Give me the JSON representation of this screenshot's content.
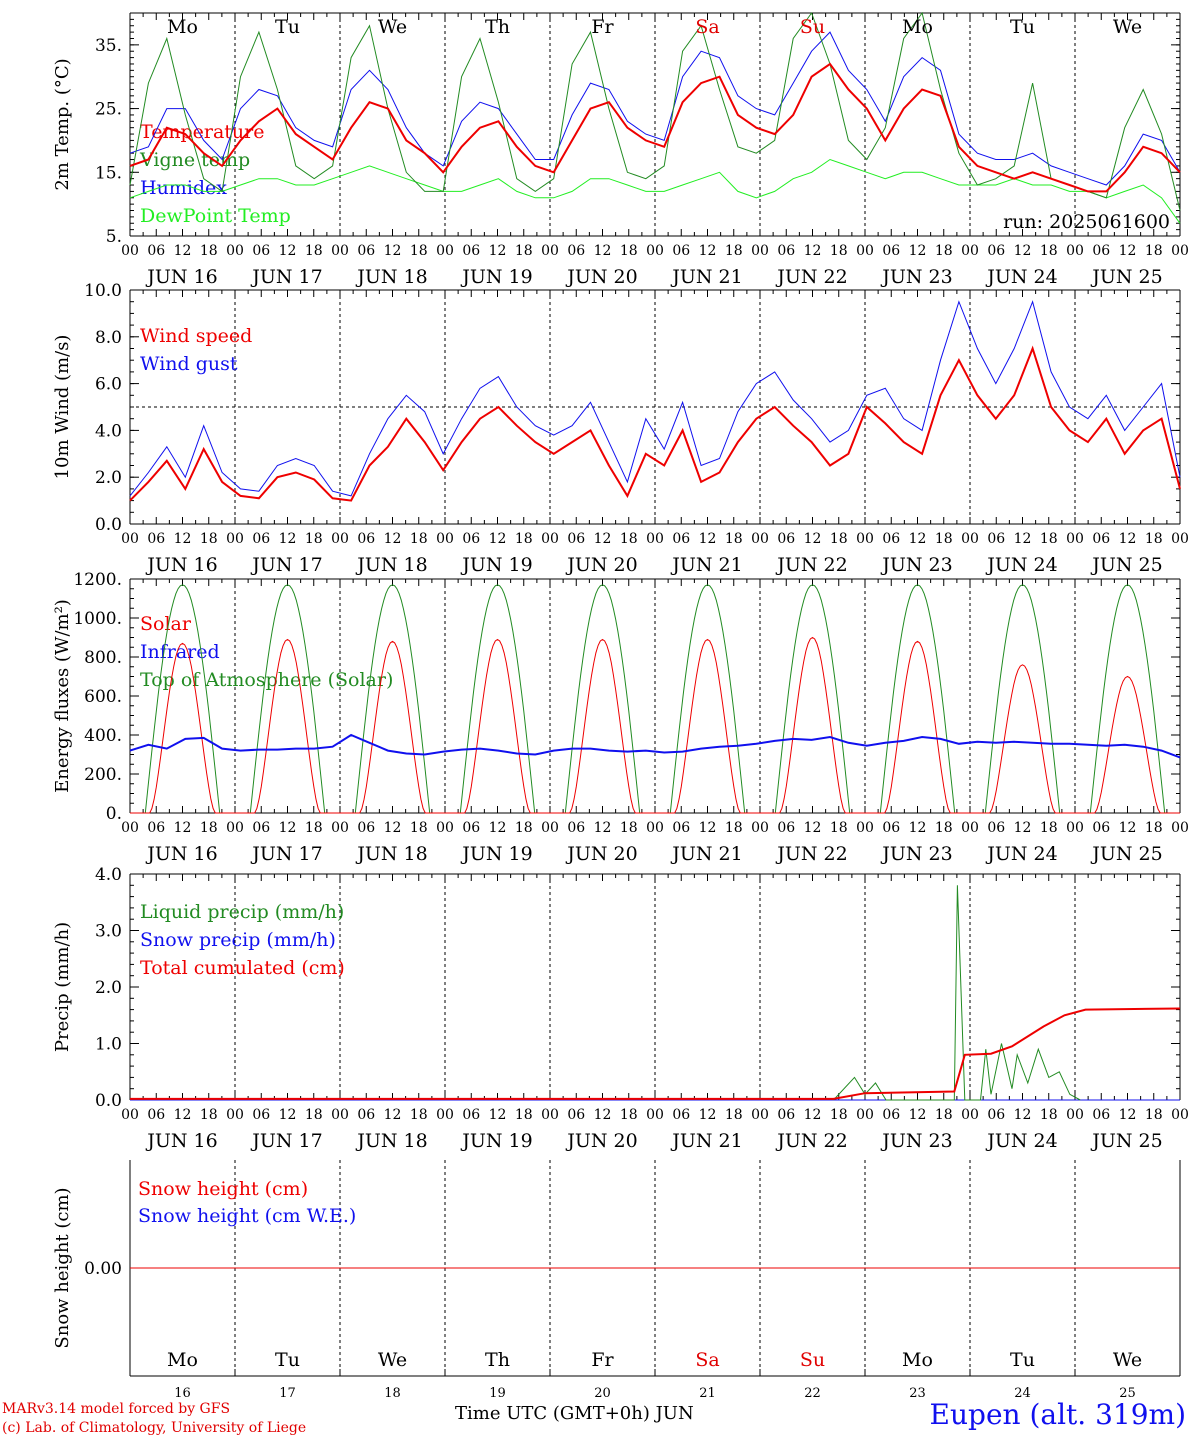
{
  "chart_data": [
    {
      "type": "line",
      "panel": "temperature",
      "ylabel": "2m Temp. (°C)",
      "ylim": [
        5,
        40
      ],
      "yticks": [
        "5.",
        "15.",
        "25.",
        "35."
      ],
      "annotation": "run: 2025061600",
      "day_names": [
        "Mo",
        "Tu",
        "We",
        "Th",
        "Fr",
        "Sa",
        "Su",
        "Mo",
        "Tu",
        "We"
      ],
      "day_name_colors": [
        "#000000",
        "#000000",
        "#000000",
        "#000000",
        "#000000",
        "#e00000",
        "#e00000",
        "#000000",
        "#000000",
        "#000000"
      ],
      "series": [
        {
          "name": "Temperature",
          "color": "#ee0000",
          "width": 2,
          "values": [
            16,
            17,
            22,
            21,
            18,
            16,
            20,
            23,
            25,
            21,
            19,
            17,
            22,
            26,
            25,
            20,
            18,
            15,
            19,
            22,
            23,
            19,
            16,
            15,
            20,
            25,
            26,
            22,
            20,
            19,
            26,
            29,
            30,
            24,
            22,
            21,
            24,
            30,
            32,
            28,
            25,
            20,
            25,
            28,
            27,
            19,
            16,
            15,
            14,
            15,
            14,
            13,
            12,
            12,
            15,
            19,
            18,
            15
          ]
        },
        {
          "name": "Vigne temp",
          "color": "#228b22",
          "width": 1,
          "values": [
            13,
            29,
            36,
            24,
            14,
            12,
            30,
            37,
            28,
            16,
            14,
            16,
            33,
            38,
            25,
            15,
            12,
            12,
            30,
            36,
            26,
            14,
            12,
            14,
            32,
            37,
            25,
            15,
            14,
            16,
            34,
            38,
            28,
            19,
            18,
            20,
            36,
            40,
            32,
            20,
            17,
            22,
            36,
            40,
            28,
            18,
            13,
            14,
            16,
            29,
            14,
            13,
            12,
            11,
            22,
            28,
            21,
            9
          ]
        },
        {
          "name": "Humidex",
          "color": "#1010ee",
          "width": 1,
          "values": [
            18,
            19,
            25,
            25,
            20,
            17,
            25,
            28,
            27,
            22,
            20,
            19,
            28,
            31,
            28,
            22,
            18,
            16,
            23,
            26,
            25,
            21,
            17,
            17,
            24,
            29,
            28,
            23,
            21,
            20,
            30,
            34,
            33,
            27,
            25,
            24,
            29,
            34,
            37,
            31,
            28,
            23,
            30,
            33,
            31,
            21,
            18,
            17,
            17,
            18,
            16,
            15,
            14,
            13,
            16,
            21,
            20,
            15
          ]
        },
        {
          "name": "DewPoint Temp",
          "color": "#22ee22",
          "width": 1,
          "values": [
            11,
            12,
            13,
            13,
            12,
            12,
            13,
            14,
            14,
            13,
            13,
            14,
            15,
            16,
            15,
            14,
            13,
            12,
            12,
            13,
            14,
            12,
            11,
            11,
            12,
            14,
            14,
            13,
            12,
            12,
            13,
            14,
            15,
            12,
            11,
            12,
            14,
            15,
            17,
            16,
            15,
            14,
            15,
            15,
            14,
            13,
            13,
            13,
            14,
            13,
            13,
            12,
            12,
            11,
            12,
            13,
            11,
            7
          ]
        }
      ]
    },
    {
      "type": "line",
      "panel": "wind",
      "ylabel": "10m Wind (m/s)",
      "ylim": [
        0,
        10
      ],
      "yticks": [
        "0.0",
        "2.0",
        "4.0",
        "6.0",
        "8.0",
        "10.0"
      ],
      "reference_line": 5.0,
      "series": [
        {
          "name": "Wind speed",
          "color": "#ee0000",
          "width": 2,
          "values": [
            1.0,
            1.8,
            2.7,
            1.5,
            3.2,
            1.8,
            1.2,
            1.1,
            2.0,
            2.2,
            1.9,
            1.1,
            1.0,
            2.5,
            3.3,
            4.5,
            3.5,
            2.3,
            3.5,
            4.5,
            5.0,
            4.2,
            3.5,
            3.0,
            3.5,
            4.0,
            2.5,
            1.2,
            3.0,
            2.5,
            4.0,
            1.8,
            2.2,
            3.5,
            4.5,
            5.0,
            4.2,
            3.5,
            2.5,
            3.0,
            5.0,
            4.3,
            3.5,
            3.0,
            5.5,
            7.0,
            5.5,
            4.5,
            5.5,
            7.5,
            5.0,
            4.0,
            3.5,
            4.5,
            3.0,
            4.0,
            4.5,
            1.5
          ]
        },
        {
          "name": "Wind gust",
          "color": "#1010ee",
          "width": 1,
          "values": [
            1.2,
            2.2,
            3.3,
            2.0,
            4.2,
            2.2,
            1.5,
            1.4,
            2.5,
            2.8,
            2.5,
            1.4,
            1.2,
            3.0,
            4.5,
            5.5,
            4.8,
            3.0,
            4.5,
            5.8,
            6.3,
            5.0,
            4.2,
            3.8,
            4.2,
            5.2,
            3.5,
            1.8,
            4.5,
            3.2,
            5.2,
            2.5,
            2.8,
            4.8,
            6.0,
            6.5,
            5.3,
            4.5,
            3.5,
            4.0,
            5.5,
            5.8,
            4.5,
            4.0,
            7.0,
            9.5,
            7.5,
            6.0,
            7.5,
            9.5,
            6.5,
            5.0,
            4.5,
            5.5,
            4.0,
            5.0,
            6.0,
            2.0
          ]
        }
      ]
    },
    {
      "type": "line",
      "panel": "energy",
      "ylabel": "Energy fluxes (W/m²)",
      "ylim": [
        0,
        1200
      ],
      "yticks": [
        "0.",
        "200.",
        "400.",
        "600.",
        "800.",
        "1000.",
        "1200."
      ],
      "series": [
        {
          "name": "Solar",
          "color": "#ee0000",
          "width": 1,
          "daily_peaks": [
            870,
            890,
            880,
            890,
            890,
            890,
            900,
            880,
            760,
            700
          ]
        },
        {
          "name": "Infrared",
          "color": "#1010ee",
          "width": 2,
          "values": [
            320,
            350,
            330,
            380,
            385,
            330,
            320,
            325,
            325,
            330,
            330,
            340,
            400,
            360,
            320,
            305,
            300,
            315,
            325,
            330,
            320,
            305,
            300,
            320,
            330,
            330,
            320,
            315,
            320,
            310,
            315,
            330,
            340,
            345,
            355,
            370,
            380,
            375,
            390,
            360,
            345,
            360,
            370,
            390,
            380,
            355,
            365,
            360,
            365,
            360,
            355,
            355,
            350,
            345,
            350,
            340,
            320,
            285
          ]
        },
        {
          "name": "Top of Atmosphere (Solar)",
          "color": "#228b22",
          "width": 1,
          "daily_peak": 1170
        }
      ]
    },
    {
      "type": "line",
      "panel": "precip",
      "ylabel": "Precip (mm/h)",
      "ylim": [
        0,
        4
      ],
      "yticks": [
        "0.0",
        "1.0",
        "2.0",
        "3.0",
        "4.0"
      ],
      "series": [
        {
          "name": "Liquid precip (mm/h)",
          "color": "#228b22",
          "width": 1,
          "points": [
            [
              6.7,
              0.0
            ],
            [
              6.9,
              0.4
            ],
            [
              7.0,
              0.1
            ],
            [
              7.1,
              0.3
            ],
            [
              7.2,
              0.0
            ],
            [
              7.85,
              0.0
            ],
            [
              7.88,
              3.8
            ],
            [
              7.95,
              0.0
            ],
            [
              8.1,
              0.0
            ],
            [
              8.15,
              0.9
            ],
            [
              8.2,
              0.1
            ],
            [
              8.3,
              1.0
            ],
            [
              8.4,
              0.2
            ],
            [
              8.45,
              0.8
            ],
            [
              8.55,
              0.3
            ],
            [
              8.65,
              0.9
            ],
            [
              8.75,
              0.4
            ],
            [
              8.85,
              0.5
            ],
            [
              8.95,
              0.1
            ],
            [
              9.05,
              0.0
            ]
          ]
        },
        {
          "name": "Snow precip (mm/h)",
          "color": "#1010ee",
          "width": 1,
          "points": [
            [
              0,
              0
            ],
            [
              10,
              0
            ]
          ]
        },
        {
          "name": "Total cumulated (cm)",
          "color": "#ee0000",
          "width": 2,
          "points": [
            [
              0,
              0.02
            ],
            [
              6.7,
              0.02
            ],
            [
              7.0,
              0.12
            ],
            [
              7.85,
              0.15
            ],
            [
              7.95,
              0.8
            ],
            [
              8.2,
              0.82
            ],
            [
              8.4,
              0.95
            ],
            [
              8.7,
              1.3
            ],
            [
              8.9,
              1.5
            ],
            [
              9.1,
              1.6
            ],
            [
              10,
              1.62
            ]
          ]
        }
      ]
    },
    {
      "type": "line",
      "panel": "snow",
      "ylabel": "Snow height (cm)",
      "yticks": [
        "0.00"
      ],
      "series": [
        {
          "name": "Snow height (cm)",
          "color": "#ee0000",
          "width": 1,
          "values": [
            0,
            0
          ]
        },
        {
          "name": "Snow height (cm W.E.)",
          "color": "#1010ee",
          "width": 1,
          "values": [
            0,
            0
          ]
        }
      ]
    }
  ],
  "x_axis": {
    "hour_labels": [
      "00",
      "06",
      "12",
      "18"
    ],
    "final_label": "00",
    "dates": [
      "JUN 16",
      "JUN 17",
      "JUN 18",
      "JUN 19",
      "JUN 20",
      "JUN 21",
      "JUN 22",
      "JUN 23",
      "JUN 24",
      "JUN 25"
    ],
    "day_numbers": [
      "16",
      "17",
      "18",
      "19",
      "20",
      "21",
      "22",
      "23",
      "24",
      "25"
    ]
  },
  "footer": {
    "model_line": "MARv3.14 model forced by GFS",
    "credit_line": "(c) Lab. of Climatology, University of Liege",
    "time_label": "Time UTC (GMT+0h) JUN",
    "station": "Eupen (alt. 319m)"
  }
}
